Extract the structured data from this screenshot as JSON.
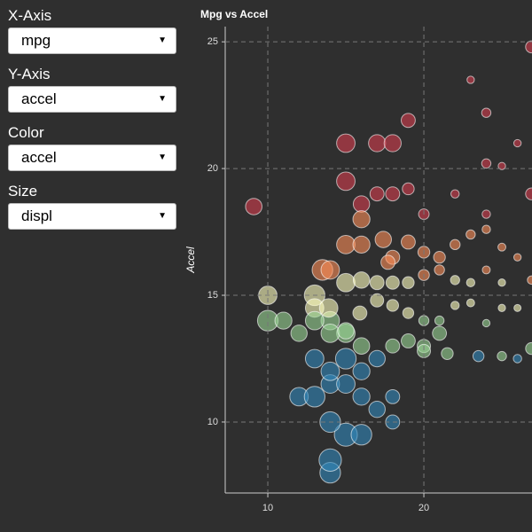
{
  "controls": [
    {
      "label": "X-Axis",
      "value": "mpg"
    },
    {
      "label": "Y-Axis",
      "value": "accel"
    },
    {
      "label": "Color",
      "value": "accel"
    },
    {
      "label": "Size",
      "value": "displ"
    }
  ],
  "chart_data": {
    "type": "scatter",
    "title": "Mpg vs Accel",
    "y_label": "Accel",
    "xlim": [
      7.27,
      26.93
    ],
    "ylim": [
      7.2,
      25.6
    ],
    "xticks": [
      10,
      20
    ],
    "yticks": [
      10,
      15,
      20,
      25
    ],
    "grid": true,
    "palette": [
      "#3288bd",
      "#99d594",
      "#ffffbf",
      "#fc8d59",
      "#d53e4f"
    ],
    "x": [
      14,
      14,
      15,
      14,
      16,
      12,
      13,
      14,
      15,
      16,
      17,
      18,
      18,
      13,
      14,
      15,
      16,
      17,
      16,
      18,
      19,
      20,
      21,
      14,
      15,
      9.1,
      10,
      10,
      24,
      19,
      23,
      26.9,
      15,
      17,
      18,
      15,
      16,
      17,
      18,
      19,
      20,
      22,
      24,
      25,
      26,
      26.9,
      16,
      24,
      15,
      16,
      17.4,
      18,
      19,
      20,
      21,
      22,
      23,
      24,
      25,
      26,
      17.7,
      13.5,
      14,
      15,
      16,
      17,
      18,
      19,
      20,
      21,
      22,
      23,
      24,
      25,
      26.9,
      13,
      13,
      13.9,
      11,
      12,
      13,
      14,
      15,
      15.9,
      17,
      18,
      19,
      20,
      21,
      22,
      23,
      24,
      25,
      26,
      20,
      21.5,
      23.5,
      25,
      26,
      26.9
    ],
    "y": [
      8,
      8.5,
      9.5,
      10,
      9.5,
      11,
      11,
      11.5,
      11.5,
      11,
      10.5,
      11,
      10,
      12.5,
      12,
      12.5,
      12,
      12.5,
      13,
      13,
      13.2,
      13,
      13.5,
      14,
      13.5,
      18.5,
      14,
      15,
      22.2,
      21.9,
      23.5,
      24.8,
      21,
      21,
      21,
      19.5,
      18.6,
      19,
      19,
      19.2,
      18.2,
      19,
      18.2,
      20.1,
      21,
      19,
      18,
      20.2,
      17,
      17,
      17.2,
      16.5,
      17.1,
      16.7,
      16.5,
      17,
      17.4,
      17.6,
      16.9,
      16.5,
      16.3,
      16,
      16,
      15.5,
      15.6,
      15.5,
      15.5,
      15.5,
      15.8,
      16,
      15.6,
      15.5,
      16,
      15.5,
      15.6,
      15,
      14.5,
      14.5,
      14,
      13.5,
      14,
      13.5,
      13.6,
      14.3,
      14.8,
      14.6,
      14.3,
      14,
      14,
      14.6,
      14.7,
      13.9,
      14.5,
      14.5,
      12.8,
      12.7,
      12.6,
      12.6,
      12.5,
      12.9
    ],
    "size": [
      400,
      440,
      455,
      400,
      400,
      350,
      400,
      350,
      350,
      318,
      302,
      250,
      250,
      350,
      350,
      400,
      318,
      302,
      305,
      250,
      250,
      232,
      250,
      350,
      350,
      304,
      400,
      350,
      140,
      250,
      97,
      200,
      350,
      318,
      318,
      350,
      302,
      250,
      250,
      200,
      170,
      120,
      120,
      97,
      98,
      200,
      318,
      140,
      350,
      318,
      302,
      250,
      250,
      200,
      198,
      160,
      140,
      120,
      110,
      98,
      250,
      400,
      350,
      350,
      302,
      250,
      232,
      200,
      180,
      160,
      140,
      120,
      110,
      98,
      120,
      400,
      350,
      350,
      318,
      302,
      350,
      350,
      302,
      250,
      232,
      200,
      180,
      160,
      140,
      120,
      110,
      98,
      97,
      91,
      232,
      200,
      180,
      140,
      120,
      200
    ]
  }
}
